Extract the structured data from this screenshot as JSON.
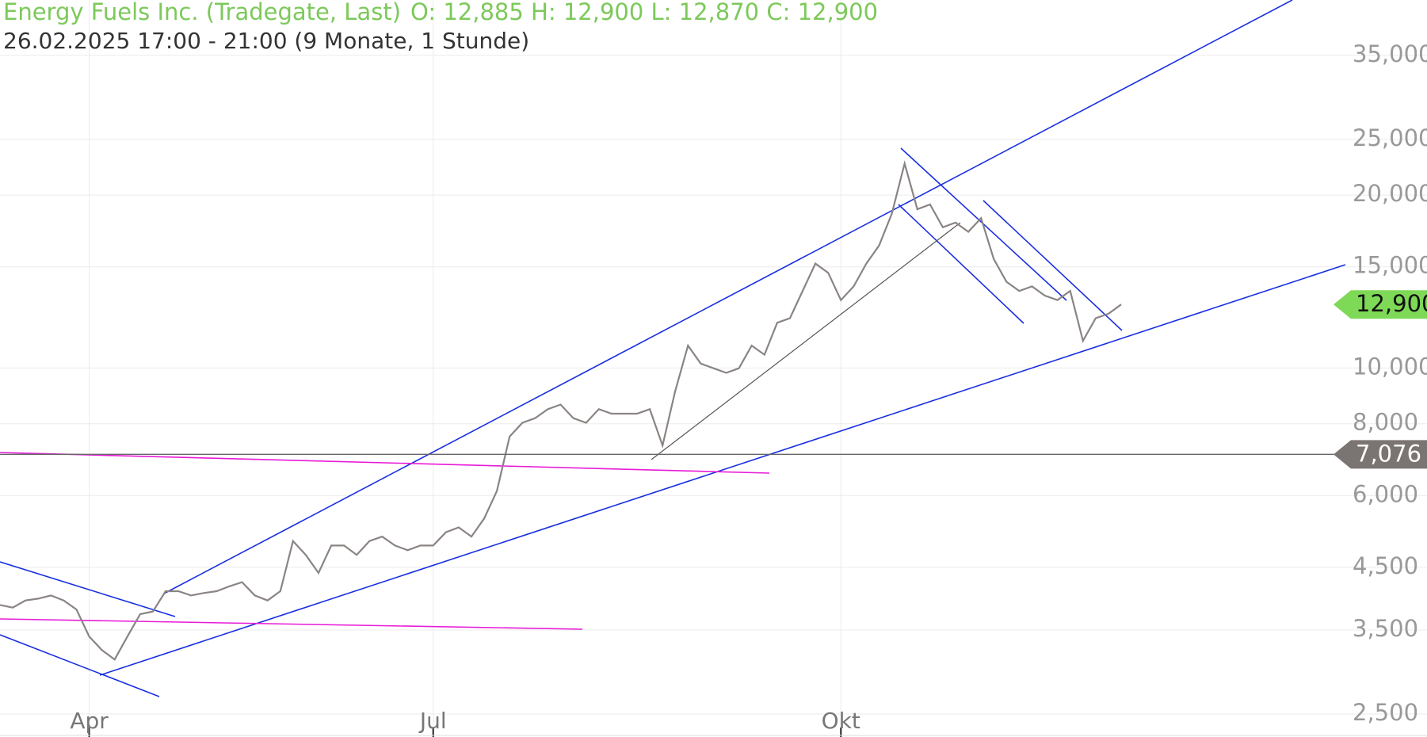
{
  "chart_data": {
    "type": "line",
    "title": "Energy Fuels Inc. (Tradegate, Last)",
    "ohlc_text": "O: 12,885  H: 12,900  L: 12,870  C: 12,900",
    "subtitle": "26.02.2025 17:00 - 21:00  (9 Monate, 1 Stunde)",
    "categories": [
      null,
      null,
      null,
      null,
      null,
      null,
      null,
      "Apr",
      null,
      null,
      null,
      null,
      null,
      null,
      null,
      null,
      null,
      null,
      null,
      null,
      null,
      null,
      null,
      null,
      null,
      null,
      null,
      null,
      null,
      null,
      null,
      null,
      null,
      null,
      "Jul",
      null,
      null,
      null,
      null,
      null,
      null,
      null,
      null,
      null,
      null,
      null,
      null,
      null,
      null,
      null,
      null,
      null,
      null,
      null,
      null,
      null,
      null,
      null,
      null,
      null,
      null,
      null,
      null,
      null,
      null,
      null,
      "Okt",
      null,
      null,
      null,
      null,
      null,
      null,
      null,
      null,
      null,
      null,
      null,
      null,
      null,
      null,
      null,
      null,
      null,
      null,
      null,
      null,
      null,
      null
    ],
    "values": [
      3.87,
      3.83,
      3.94,
      3.97,
      4.02,
      3.94,
      3.8,
      3.41,
      3.23,
      3.11,
      3.41,
      3.73,
      3.77,
      4.09,
      4.09,
      4.02,
      4.06,
      4.09,
      4.17,
      4.24,
      4.02,
      3.94,
      4.09,
      5.0,
      4.73,
      4.4,
      4.91,
      4.91,
      4.73,
      5.0,
      5.09,
      4.91,
      4.82,
      4.91,
      4.91,
      5.18,
      5.28,
      5.09,
      5.47,
      6.11,
      7.6,
      8.03,
      8.18,
      8.48,
      8.64,
      8.18,
      8.03,
      8.48,
      8.33,
      8.33,
      8.33,
      8.48,
      7.33,
      9.12,
      10.94,
      10.18,
      9.99,
      9.81,
      9.99,
      10.94,
      10.55,
      11.99,
      12.21,
      13.62,
      15.2,
      14.65,
      13.13,
      13.87,
      15.2,
      16.34,
      18.57,
      22.69,
      18.9,
      19.26,
      17.58,
      17.91,
      17.26,
      18.23,
      15.48,
      14.13,
      13.62,
      13.87,
      13.37,
      13.13,
      13.62,
      11.15,
      12.21,
      12.43,
      12.9
    ],
    "color": "#8a8483",
    "log_scale": true,
    "grid": true,
    "ylim": [
      2.28,
      43.7
    ],
    "yticks": [
      {
        "value": 2.5,
        "label": "2,500"
      },
      {
        "value": 3.5,
        "label": "3,500"
      },
      {
        "value": 4.5,
        "label": "4,500"
      },
      {
        "value": 6,
        "label": "6,000"
      },
      {
        "value": 8,
        "label": "8,000"
      },
      {
        "value": 10,
        "label": "10,000"
      },
      {
        "value": 15,
        "label": "15,000"
      },
      {
        "value": 20,
        "label": "20,000"
      },
      {
        "value": 25,
        "label": "25,000"
      },
      {
        "value": 35,
        "label": "35,000"
      }
    ],
    "markers": [
      {
        "value": 12.9,
        "label": "12,900",
        "color": "#7ed957"
      },
      {
        "value": 7.076,
        "label": "7,076",
        "color": "#7a7472"
      }
    ]
  }
}
